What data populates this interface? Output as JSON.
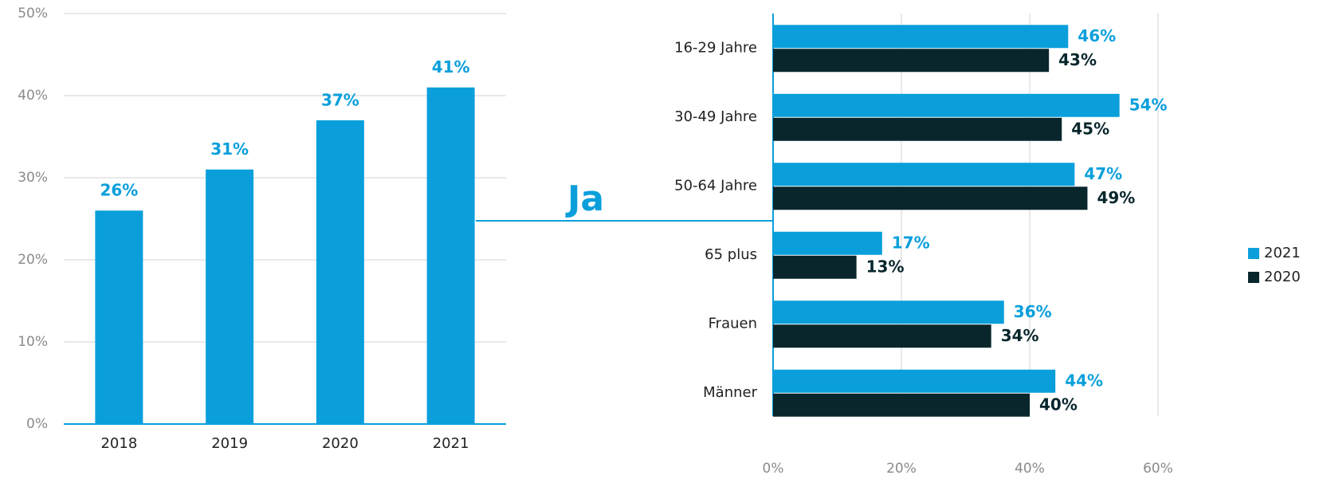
{
  "annotation": "Ja",
  "chart_data": [
    {
      "type": "bar",
      "categories": [
        "2018",
        "2019",
        "2020",
        "2021"
      ],
      "values": [
        26,
        31,
        37,
        41
      ],
      "value_labels": [
        "26%",
        "31%",
        "37%",
        "41%"
      ],
      "color": "#0a9fdb",
      "ylim": [
        0,
        50
      ],
      "yticks": [
        {
          "value": 0,
          "label": "0%"
        },
        {
          "value": 10,
          "label": "10%"
        },
        {
          "value": 20,
          "label": "20%"
        },
        {
          "value": 30,
          "label": "30%"
        },
        {
          "value": 40,
          "label": "40%"
        },
        {
          "value": 50,
          "label": "50%"
        }
      ],
      "grid": true
    },
    {
      "type": "hbar",
      "categories": [
        "16-29 Jahre",
        "30-49 Jahre",
        "50-64 Jahre",
        "65 plus",
        "Frauen",
        "Männer"
      ],
      "series": [
        {
          "name": "2021",
          "color": "#0a9fdb",
          "values": [
            46,
            54,
            47,
            17,
            36,
            44
          ],
          "value_labels": [
            "46%",
            "54%",
            "47%",
            "17%",
            "36%",
            "44%"
          ]
        },
        {
          "name": "2020",
          "color": "#08262c",
          "values": [
            43,
            45,
            49,
            13,
            34,
            40
          ],
          "value_labels": [
            "43%",
            "45%",
            "49%",
            "13%",
            "34%",
            "40%"
          ]
        }
      ],
      "xlim": [
        0,
        60
      ],
      "xticks": [
        {
          "value": 0,
          "label": "0%"
        },
        {
          "value": 20,
          "label": "20%"
        },
        {
          "value": 40,
          "label": "40%"
        },
        {
          "value": 60,
          "label": "60%"
        }
      ],
      "grid": true,
      "legend": "right"
    }
  ]
}
